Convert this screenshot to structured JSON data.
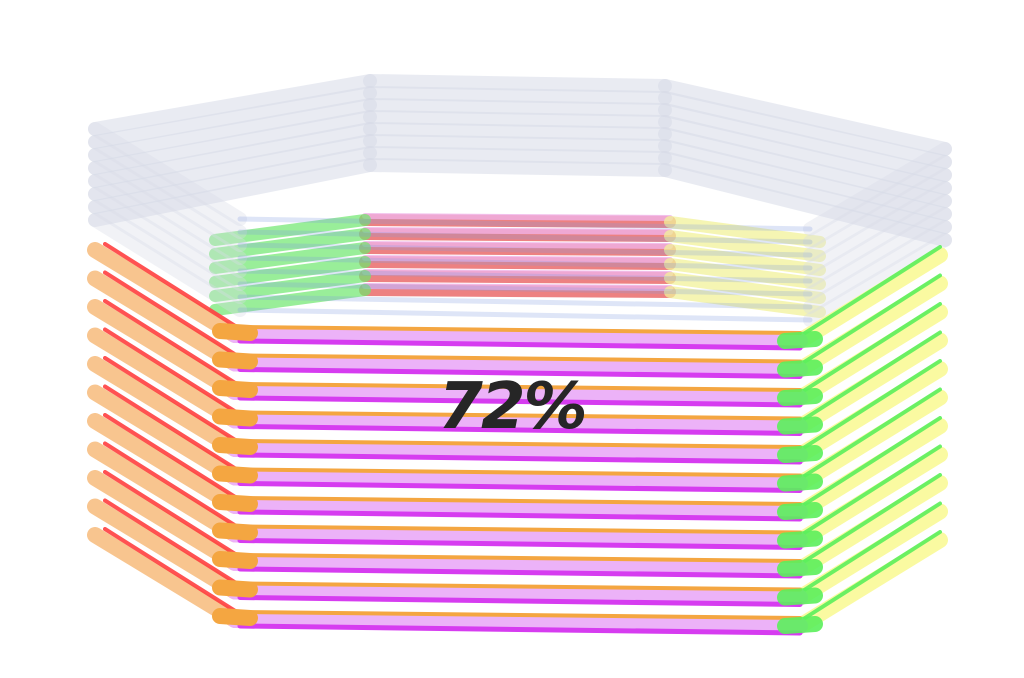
{
  "progress": {
    "value": 0.72,
    "label": "72%"
  },
  "stack": {
    "layers_total": 14,
    "filled_layers": 10,
    "colors": {
      "front": "#d63cf0",
      "front_light": "#ecb2f8",
      "front_accent": "#f4a641",
      "left_front": "#f8c28a",
      "left_stripe": "#ff4040",
      "left_back": "#6ee86e",
      "right_front": "#fafa9c",
      "right_stripe": "#5cf05c",
      "back": "#e85858",
      "back_light": "#f0b2e8",
      "empty": "#d8dce8",
      "empty_edge": "#b9c2d8",
      "empty_blue": "#7f9be0"
    }
  }
}
